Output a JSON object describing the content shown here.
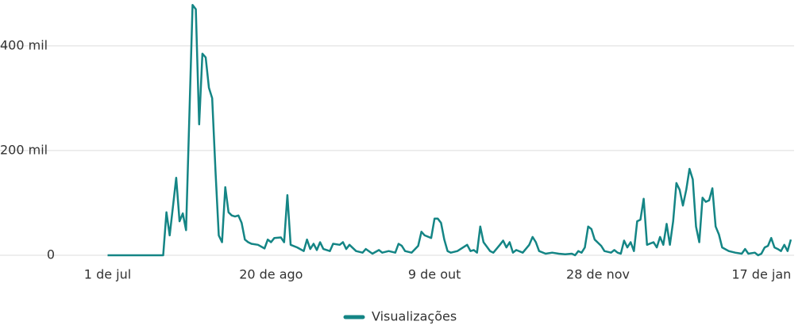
{
  "chart_data": {
    "type": "line",
    "x": [
      0,
      17,
      18,
      19,
      21,
      22,
      23,
      24,
      26,
      27,
      28,
      29,
      30,
      31,
      32,
      33,
      34,
      35,
      36,
      37,
      38,
      39,
      40,
      41,
      42,
      43,
      44,
      46,
      48,
      49,
      50,
      51,
      53,
      54,
      55,
      56,
      58,
      60,
      61,
      62,
      63,
      64,
      65,
      66,
      68,
      69,
      71,
      72,
      73,
      74,
      76,
      78,
      79,
      81,
      83,
      84,
      86,
      88,
      89,
      90,
      91,
      93,
      95,
      96,
      97,
      99,
      100,
      101,
      102,
      103,
      104,
      105,
      107,
      108,
      110,
      111,
      112,
      113,
      114,
      115,
      117,
      118,
      120,
      121,
      122,
      123,
      124,
      125,
      127,
      129,
      130,
      131,
      132,
      134,
      136,
      138,
      140,
      142,
      143,
      144,
      145,
      146,
      147,
      148,
      149,
      151,
      152,
      154,
      155,
      156,
      157,
      158,
      159,
      160,
      161,
      162,
      163,
      164,
      165,
      167,
      168,
      169,
      170,
      171,
      172,
      173,
      174,
      175,
      176,
      177,
      178,
      179,
      180,
      181,
      182,
      183,
      184,
      185,
      186,
      187,
      188,
      190,
      192,
      194,
      195,
      196,
      198,
      199,
      200,
      201,
      202,
      203,
      204,
      205,
      206,
      207,
      208,
      209
    ],
    "series": [
      {
        "name": "Visualizações",
        "color": "#148585",
        "values": [
          0,
          0,
          82000,
          38000,
          148000,
          65000,
          80000,
          48000,
          478000,
          470000,
          250000,
          385000,
          378000,
          320000,
          300000,
          160000,
          38000,
          25000,
          130000,
          82000,
          76000,
          74000,
          76000,
          62000,
          30000,
          25000,
          22000,
          20000,
          13000,
          30000,
          25000,
          33000,
          34000,
          25000,
          115000,
          20000,
          15000,
          8000,
          30000,
          12000,
          22000,
          10000,
          25000,
          12000,
          8000,
          22000,
          20000,
          25000,
          12000,
          20000,
          8000,
          5000,
          12000,
          3000,
          10000,
          5000,
          8000,
          5000,
          22000,
          18000,
          8000,
          5000,
          18000,
          45000,
          38000,
          33000,
          70000,
          70000,
          62000,
          30000,
          8000,
          5000,
          8000,
          12000,
          20000,
          8000,
          10000,
          5000,
          55000,
          25000,
          8000,
          5000,
          20000,
          28000,
          15000,
          25000,
          5000,
          10000,
          5000,
          20000,
          35000,
          25000,
          8000,
          3000,
          5000,
          3000,
          2000,
          3000,
          0,
          8000,
          5000,
          15000,
          55000,
          50000,
          30000,
          18000,
          8000,
          5000,
          10000,
          5000,
          3000,
          28000,
          15000,
          25000,
          8000,
          65000,
          68000,
          108000,
          20000,
          25000,
          15000,
          35000,
          20000,
          60000,
          20000,
          65000,
          138000,
          125000,
          95000,
          125000,
          165000,
          145000,
          55000,
          25000,
          110000,
          102000,
          105000,
          128000,
          55000,
          40000,
          15000,
          8000,
          5000,
          3000,
          12000,
          3000,
          5000,
          0,
          3000,
          15000,
          18000,
          33000,
          15000,
          12000,
          8000,
          20000,
          8000,
          30000
        ]
      }
    ],
    "xlim": [
      -30,
      210
    ],
    "xticks": [
      {
        "value": 0,
        "label": "1 de jul"
      },
      {
        "value": 50,
        "label": "20 de ago"
      },
      {
        "value": 100,
        "label": "9 de out"
      },
      {
        "value": 150,
        "label": "28 de nov"
      },
      {
        "value": 200,
        "label": "17 de jan"
      }
    ],
    "ylim": [
      0,
      480000
    ],
    "yticks": [
      0,
      {
        "value": 200000,
        "label": "200 mil"
      },
      {
        "value": 400000,
        "label": "400 mil"
      }
    ],
    "grid": true,
    "legend": "bottom"
  }
}
